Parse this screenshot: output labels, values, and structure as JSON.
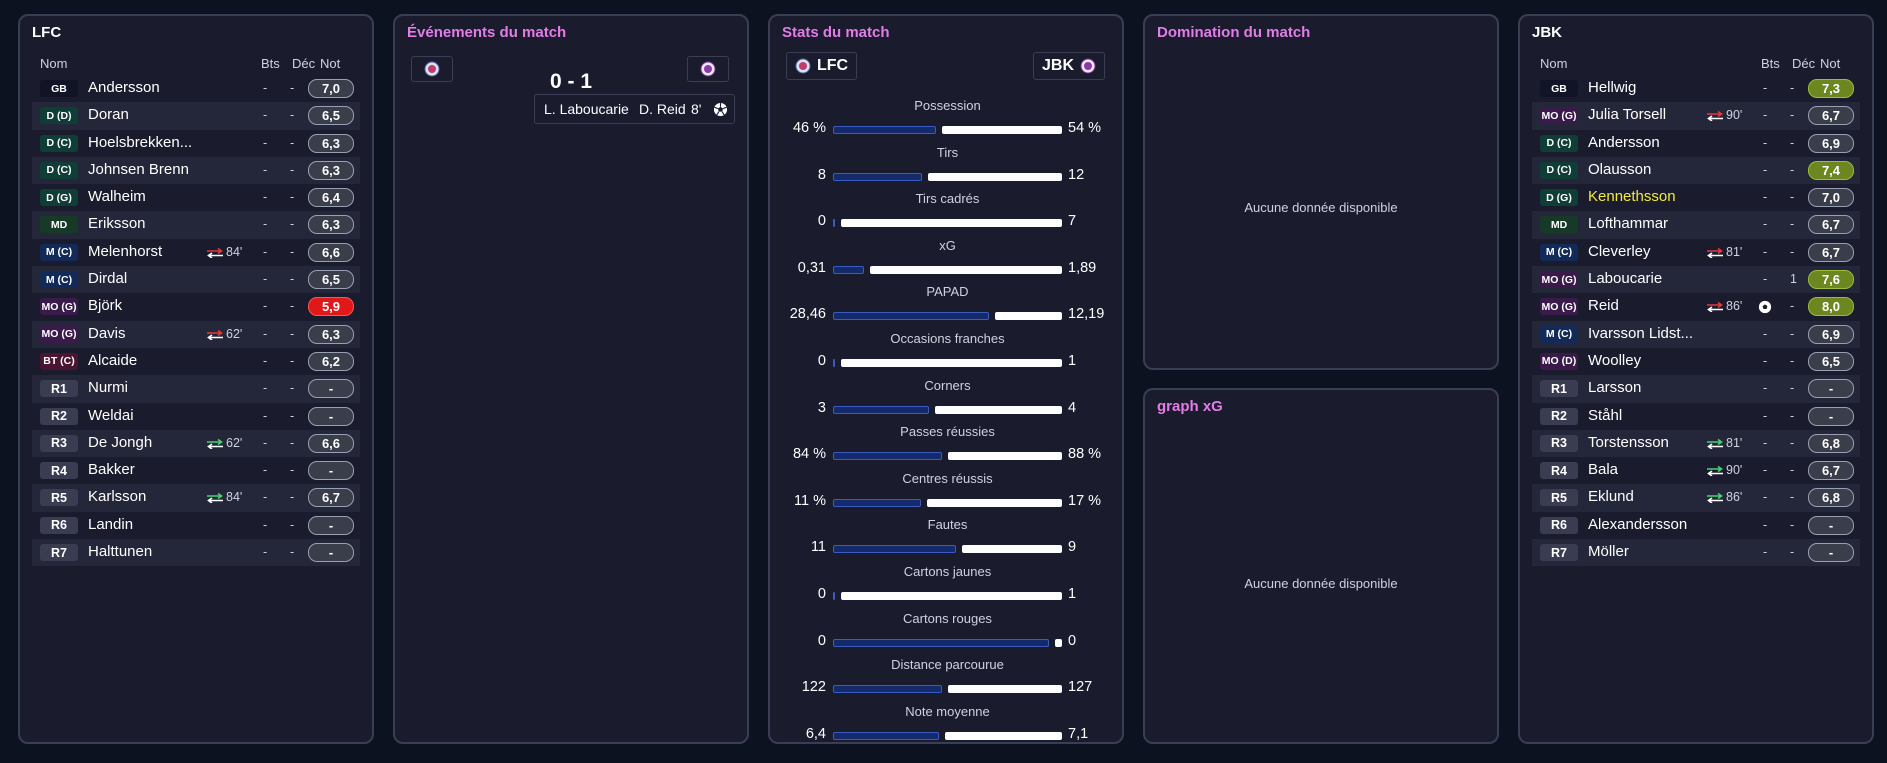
{
  "lfc": {
    "title": "LFC",
    "headers": {
      "name": "Nom",
      "goals": "Bts",
      "dec": "Déc",
      "rating": "Not"
    },
    "players": [
      {
        "pos": "GB",
        "name": "Andersson",
        "sub": "",
        "min": "",
        "bts": "-",
        "dec": "-",
        "rating": "7,0",
        "kind": "gk"
      },
      {
        "pos": "D (D)",
        "name": "Doran",
        "sub": "",
        "min": "",
        "bts": "-",
        "dec": "-",
        "rating": "6,5",
        "kind": "def"
      },
      {
        "pos": "D (C)",
        "name": "Hoelsbrekken...",
        "sub": "",
        "min": "",
        "bts": "-",
        "dec": "-",
        "rating": "6,3",
        "kind": "def"
      },
      {
        "pos": "D (C)",
        "name": "Johnsen Brenn",
        "sub": "",
        "min": "",
        "bts": "-",
        "dec": "-",
        "rating": "6,3",
        "kind": "def"
      },
      {
        "pos": "D (G)",
        "name": "Walheim",
        "sub": "",
        "min": "",
        "bts": "-",
        "dec": "-",
        "rating": "6,4",
        "kind": "def"
      },
      {
        "pos": "MD",
        "name": "Eriksson",
        "sub": "",
        "min": "",
        "bts": "-",
        "dec": "-",
        "rating": "6,3",
        "kind": "dm"
      },
      {
        "pos": "M (C)",
        "name": "Melenhorst",
        "sub": "out",
        "min": "84'",
        "bts": "-",
        "dec": "-",
        "rating": "6,6",
        "kind": "mid"
      },
      {
        "pos": "M (C)",
        "name": "Dirdal",
        "sub": "",
        "min": "",
        "bts": "-",
        "dec": "-",
        "rating": "6,5",
        "kind": "mid"
      },
      {
        "pos": "MO (G)",
        "name": "Björk",
        "sub": "",
        "min": "",
        "bts": "-",
        "dec": "-",
        "rating": "5,9",
        "kind": "am",
        "rstyle": "bad"
      },
      {
        "pos": "MO (G)",
        "name": "Davis",
        "sub": "out",
        "min": "62'",
        "bts": "-",
        "dec": "-",
        "rating": "6,3",
        "kind": "am"
      },
      {
        "pos": "BT (C)",
        "name": "Alcaide",
        "sub": "",
        "min": "",
        "bts": "-",
        "dec": "-",
        "rating": "6,2",
        "kind": "st"
      },
      {
        "pos": "R1",
        "name": "Nurmi",
        "sub": "",
        "min": "",
        "bts": "-",
        "dec": "-",
        "rating": "-",
        "kind": "res"
      },
      {
        "pos": "R2",
        "name": "Weldai",
        "sub": "",
        "min": "",
        "bts": "-",
        "dec": "-",
        "rating": "-",
        "kind": "res"
      },
      {
        "pos": "R3",
        "name": "De Jongh",
        "sub": "in",
        "min": "62'",
        "bts": "-",
        "dec": "-",
        "rating": "6,6",
        "kind": "res"
      },
      {
        "pos": "R4",
        "name": "Bakker",
        "sub": "",
        "min": "",
        "bts": "-",
        "dec": "-",
        "rating": "-",
        "kind": "res"
      },
      {
        "pos": "R5",
        "name": "Karlsson",
        "sub": "in",
        "min": "84'",
        "bts": "-",
        "dec": "-",
        "rating": "6,7",
        "kind": "res"
      },
      {
        "pos": "R6",
        "name": "Landin",
        "sub": "",
        "min": "",
        "bts": "-",
        "dec": "-",
        "rating": "-",
        "kind": "res"
      },
      {
        "pos": "R7",
        "name": "Halttunen",
        "sub": "",
        "min": "",
        "bts": "-",
        "dec": "-",
        "rating": "-",
        "kind": "res"
      }
    ]
  },
  "jbk": {
    "title": "JBK",
    "headers": {
      "name": "Nom",
      "goals": "Bts",
      "dec": "Déc",
      "rating": "Not"
    },
    "players": [
      {
        "pos": "GB",
        "name": "Hellwig",
        "sub": "",
        "min": "",
        "bts": "-",
        "dec": "-",
        "rating": "7,3",
        "kind": "gk",
        "rstyle": "good"
      },
      {
        "pos": "MO (G)",
        "name": "Julia Torsell",
        "sub": "out",
        "min": "90'",
        "bts": "-",
        "dec": "-",
        "rating": "6,7",
        "kind": "am"
      },
      {
        "pos": "D (C)",
        "name": "Andersson",
        "sub": "",
        "min": "",
        "bts": "-",
        "dec": "-",
        "rating": "6,9",
        "kind": "def"
      },
      {
        "pos": "D (C)",
        "name": "Olausson",
        "sub": "",
        "min": "",
        "bts": "-",
        "dec": "-",
        "rating": "7,4",
        "kind": "def",
        "rstyle": "good"
      },
      {
        "pos": "D (G)",
        "name": "Kennethsson",
        "sub": "",
        "min": "",
        "bts": "-",
        "dec": "-",
        "rating": "7,0",
        "kind": "def",
        "highlight": true
      },
      {
        "pos": "MD",
        "name": "Lofthammar",
        "sub": "",
        "min": "",
        "bts": "-",
        "dec": "-",
        "rating": "6,7",
        "kind": "dm"
      },
      {
        "pos": "M (C)",
        "name": "Cleverley",
        "sub": "out",
        "min": "81'",
        "bts": "-",
        "dec": "-",
        "rating": "6,7",
        "kind": "mid"
      },
      {
        "pos": "MO (G)",
        "name": "Laboucarie",
        "sub": "",
        "min": "",
        "bts": "-",
        "dec": "1",
        "rating": "7,6",
        "kind": "am",
        "rstyle": "good"
      },
      {
        "pos": "MO (G)",
        "name": "Reid",
        "sub": "out",
        "min": "86'",
        "bts": "goal",
        "dec": "-",
        "rating": "8,0",
        "kind": "am",
        "rstyle": "good"
      },
      {
        "pos": "M (C)",
        "name": "Ivarsson Lidst...",
        "sub": "",
        "min": "",
        "bts": "-",
        "dec": "-",
        "rating": "6,9",
        "kind": "mid"
      },
      {
        "pos": "MO (D)",
        "name": "Woolley",
        "sub": "",
        "min": "",
        "bts": "-",
        "dec": "-",
        "rating": "6,5",
        "kind": "am"
      },
      {
        "pos": "R1",
        "name": "Larsson",
        "sub": "",
        "min": "",
        "bts": "-",
        "dec": "-",
        "rating": "-",
        "kind": "res"
      },
      {
        "pos": "R2",
        "name": "Ståhl",
        "sub": "",
        "min": "",
        "bts": "-",
        "dec": "-",
        "rating": "-",
        "kind": "res"
      },
      {
        "pos": "R3",
        "name": "Torstensson",
        "sub": "in",
        "min": "81'",
        "bts": "-",
        "dec": "-",
        "rating": "6,8",
        "kind": "res"
      },
      {
        "pos": "R4",
        "name": "Bala",
        "sub": "in",
        "min": "90'",
        "bts": "-",
        "dec": "-",
        "rating": "6,7",
        "kind": "res"
      },
      {
        "pos": "R5",
        "name": "Eklund",
        "sub": "in",
        "min": "86'",
        "bts": "-",
        "dec": "-",
        "rating": "6,8",
        "kind": "res"
      },
      {
        "pos": "R6",
        "name": "Alexandersson",
        "sub": "",
        "min": "",
        "bts": "-",
        "dec": "-",
        "rating": "-",
        "kind": "res"
      },
      {
        "pos": "R7",
        "name": "Möller",
        "sub": "",
        "min": "",
        "bts": "-",
        "dec": "-",
        "rating": "-",
        "kind": "res"
      }
    ]
  },
  "events": {
    "title": "Événements du match",
    "score": "0 - 1",
    "items": [
      {
        "assist": "L. Laboucarie",
        "scorer": "D. Reid",
        "minute": "8'",
        "icon": "football-icon"
      }
    ]
  },
  "stats": {
    "title": "Stats du match",
    "home": "LFC",
    "away": "JBK",
    "rows": [
      {
        "label": "Possession",
        "home": "46 %",
        "away": "54 %",
        "hv": 46,
        "av": 54
      },
      {
        "label": "Tirs",
        "home": "8",
        "away": "12",
        "hv": 8,
        "av": 12
      },
      {
        "label": "Tirs cadrés",
        "home": "0",
        "away": "7",
        "hv": 0,
        "av": 7
      },
      {
        "label": "xG",
        "home": "0,31",
        "away": "1,89",
        "hv": 0.31,
        "av": 1.89
      },
      {
        "label": "PAPAD",
        "home": "28,46",
        "away": "12,19",
        "hv": 28.46,
        "av": 12.19
      },
      {
        "label": "Occasions franches",
        "home": "0",
        "away": "1",
        "hv": 0,
        "av": 1
      },
      {
        "label": "Corners",
        "home": "3",
        "away": "4",
        "hv": 3,
        "av": 4
      },
      {
        "label": "Passes réussies",
        "home": "84 %",
        "away": "88 %",
        "hv": 84,
        "av": 88
      },
      {
        "label": "Centres réussis",
        "home": "11 %",
        "away": "17 %",
        "hv": 11,
        "av": 17
      },
      {
        "label": "Fautes",
        "home": "11",
        "away": "9",
        "hv": 11,
        "av": 9
      },
      {
        "label": "Cartons jaunes",
        "home": "0",
        "away": "1",
        "hv": 0,
        "av": 1
      },
      {
        "label": "Cartons rouges",
        "home": "0",
        "away": "0",
        "hv": 0,
        "av": 0
      },
      {
        "label": "Distance parcourue",
        "home": "122",
        "away": "127",
        "hv": 122,
        "av": 127
      },
      {
        "label": "Note moyenne",
        "home": "6,4",
        "away": "7,1",
        "hv": 6.4,
        "av": 7.1
      }
    ]
  },
  "domination": {
    "title": "Domination du match",
    "empty": "Aucune donnée disponible"
  },
  "xg_graph": {
    "title": "graph xG",
    "empty": "Aucune donnée disponible"
  },
  "colors": {
    "gk": "#101426",
    "def": "#0f3e37",
    "dm": "#163a27",
    "mid": "#122a57",
    "am": "#3a1a4a",
    "st": "#4a1530",
    "res": "#3a3d52",
    "highlight": "#f1ea3a"
  }
}
